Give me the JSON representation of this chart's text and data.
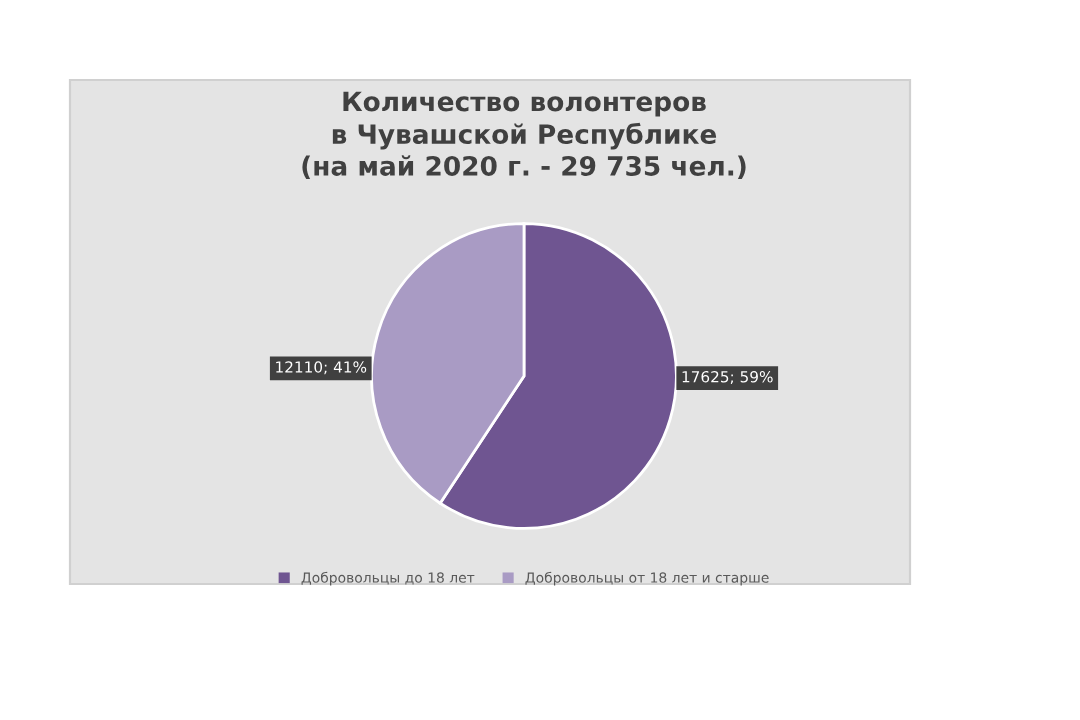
{
  "chart_data": {
    "type": "pie",
    "title": "Количество волонтеров\nв Чувашской Республике\n(на май 2020 г. - 29 735 чел.)",
    "categories": [
      "Добровольцы до 18 лет",
      "Добровольцы от 18 лет и старше"
    ],
    "values": [
      17625,
      12110
    ],
    "colors": [
      "#6f5591",
      "#a99bc4"
    ],
    "value_labels": [
      "17625; 59%",
      "12110; 41%"
    ],
    "legend": "bottom"
  }
}
